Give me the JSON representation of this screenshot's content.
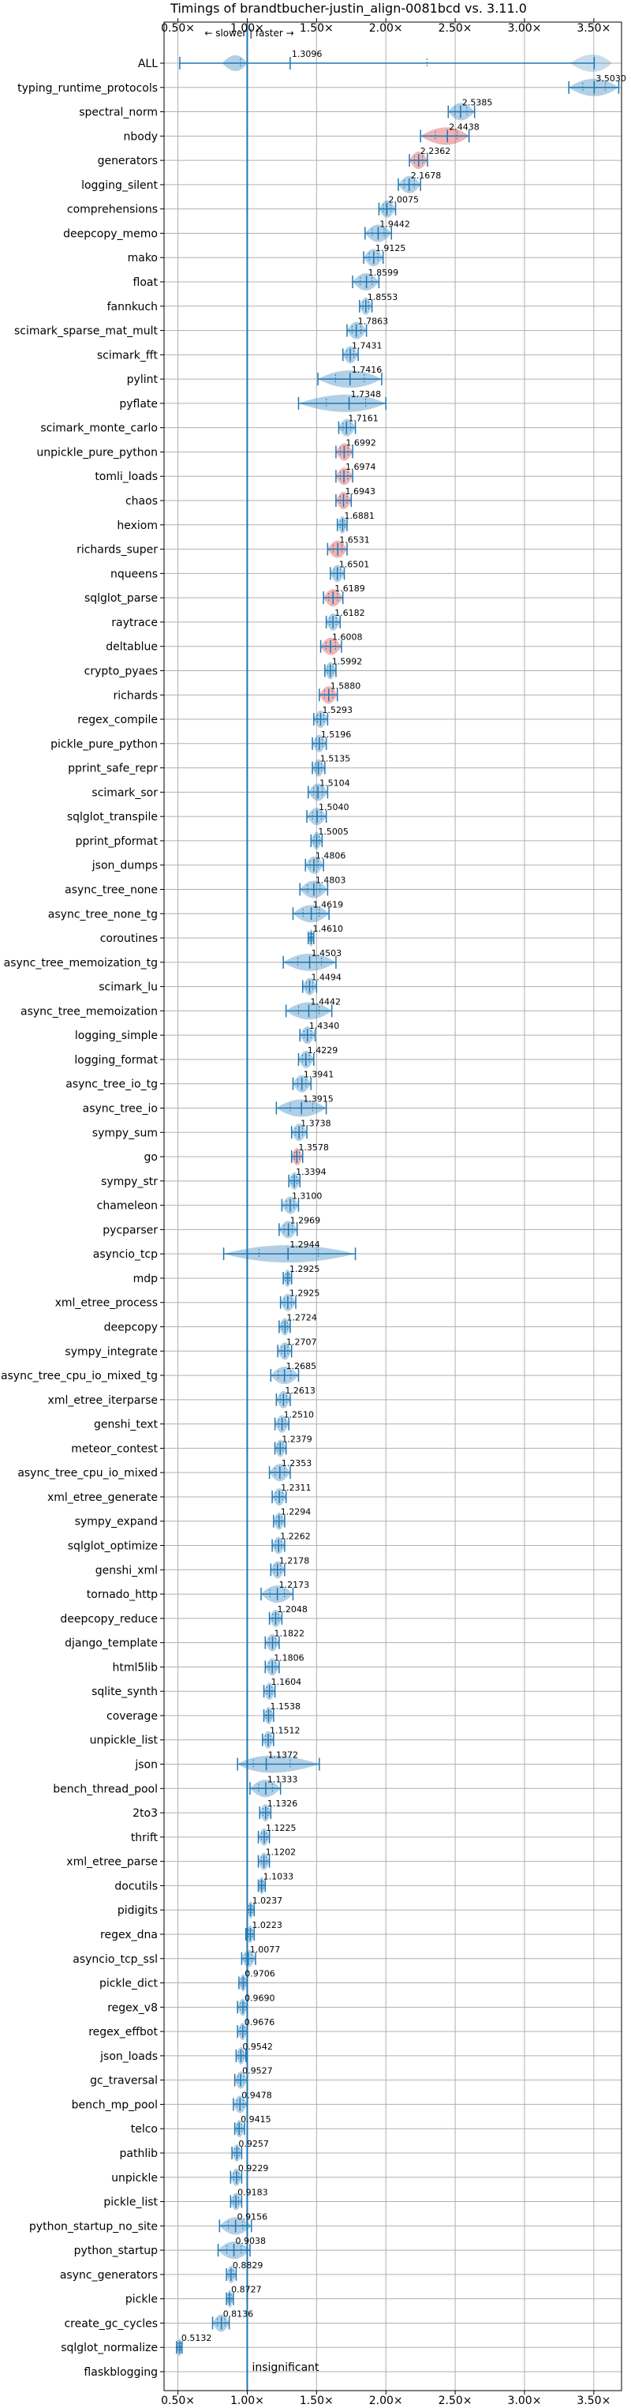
{
  "chart_data": {
    "type": "violin",
    "title": "Timings of brandtbucher-justin_align-0081bcd vs. 3.11.0",
    "xlim": [
      0.4,
      3.7
    ],
    "xticks": [
      0.5,
      1.0,
      1.5,
      2.0,
      2.5,
      3.0,
      3.5
    ],
    "xtick_labels": [
      "0.50×",
      "1.00×",
      "1.50×",
      "2.00×",
      "2.50×",
      "3.00×",
      "3.50×"
    ],
    "grid": true,
    "reference_x": 1.0,
    "direction_hint": "← slower | faster →",
    "colors": {
      "faster": "#1f77b4",
      "slower": "#d62728",
      "line": "#1f77b4"
    },
    "categories": [
      {
        "name": "ALL",
        "value": 1.3096,
        "lo": 0.5132,
        "hi": 3.503,
        "wide": true
      },
      {
        "name": "typing_runtime_protocols",
        "value": 3.503,
        "lo": 3.32,
        "hi": 3.68
      },
      {
        "name": "spectral_norm",
        "value": 2.5385,
        "lo": 2.45,
        "hi": 2.64
      },
      {
        "name": "nbody",
        "value": 2.4438,
        "lo": 2.25,
        "hi": 2.6
      },
      {
        "name": "generators",
        "value": 2.2362,
        "lo": 2.17,
        "hi": 2.3
      },
      {
        "name": "logging_silent",
        "value": 2.1678,
        "lo": 2.09,
        "hi": 2.25
      },
      {
        "name": "comprehensions",
        "value": 2.0075,
        "lo": 1.95,
        "hi": 2.07
      },
      {
        "name": "deepcopy_memo",
        "value": 1.9442,
        "lo": 1.85,
        "hi": 2.04
      },
      {
        "name": "mako",
        "value": 1.9125,
        "lo": 1.84,
        "hi": 1.98
      },
      {
        "name": "float",
        "value": 1.8599,
        "lo": 1.76,
        "hi": 1.95
      },
      {
        "name": "fannkuch",
        "value": 1.8553,
        "lo": 1.81,
        "hi": 1.9
      },
      {
        "name": "scimark_sparse_mat_mult",
        "value": 1.7863,
        "lo": 1.72,
        "hi": 1.86
      },
      {
        "name": "scimark_fft",
        "value": 1.7431,
        "lo": 1.69,
        "hi": 1.8
      },
      {
        "name": "pylint",
        "value": 1.7416,
        "lo": 1.51,
        "hi": 1.97
      },
      {
        "name": "pyflate",
        "value": 1.7348,
        "lo": 1.37,
        "hi": 2.0
      },
      {
        "name": "scimark_monte_carlo",
        "value": 1.7161,
        "lo": 1.66,
        "hi": 1.78
      },
      {
        "name": "unpickle_pure_python",
        "value": 1.6992,
        "lo": 1.64,
        "hi": 1.76
      },
      {
        "name": "tomli_loads",
        "value": 1.6974,
        "lo": 1.64,
        "hi": 1.76
      },
      {
        "name": "chaos",
        "value": 1.6943,
        "lo": 1.64,
        "hi": 1.75
      },
      {
        "name": "hexiom",
        "value": 1.6881,
        "lo": 1.65,
        "hi": 1.72
      },
      {
        "name": "richards_super",
        "value": 1.6531,
        "lo": 1.58,
        "hi": 1.72
      },
      {
        "name": "nqueens",
        "value": 1.6501,
        "lo": 1.6,
        "hi": 1.7
      },
      {
        "name": "sqlglot_parse",
        "value": 1.6189,
        "lo": 1.55,
        "hi": 1.69
      },
      {
        "name": "raytrace",
        "value": 1.6182,
        "lo": 1.57,
        "hi": 1.67
      },
      {
        "name": "deltablue",
        "value": 1.6008,
        "lo": 1.53,
        "hi": 1.68
      },
      {
        "name": "crypto_pyaes",
        "value": 1.5992,
        "lo": 1.56,
        "hi": 1.64
      },
      {
        "name": "richards",
        "value": 1.588,
        "lo": 1.52,
        "hi": 1.65
      },
      {
        "name": "regex_compile",
        "value": 1.5293,
        "lo": 1.48,
        "hi": 1.58
      },
      {
        "name": "pickle_pure_python",
        "value": 1.5196,
        "lo": 1.47,
        "hi": 1.57
      },
      {
        "name": "pprint_safe_repr",
        "value": 1.5135,
        "lo": 1.47,
        "hi": 1.56
      },
      {
        "name": "scimark_sor",
        "value": 1.5104,
        "lo": 1.44,
        "hi": 1.58
      },
      {
        "name": "sqlglot_transpile",
        "value": 1.504,
        "lo": 1.43,
        "hi": 1.57
      },
      {
        "name": "pprint_pformat",
        "value": 1.5005,
        "lo": 1.46,
        "hi": 1.54
      },
      {
        "name": "json_dumps",
        "value": 1.4806,
        "lo": 1.42,
        "hi": 1.55
      },
      {
        "name": "async_tree_none",
        "value": 1.4803,
        "lo": 1.38,
        "hi": 1.58
      },
      {
        "name": "async_tree_none_tg",
        "value": 1.4619,
        "lo": 1.33,
        "hi": 1.59
      },
      {
        "name": "coroutines",
        "value": 1.461,
        "lo": 1.44,
        "hi": 1.48
      },
      {
        "name": "async_tree_memoization_tg",
        "value": 1.4503,
        "lo": 1.26,
        "hi": 1.64
      },
      {
        "name": "scimark_lu",
        "value": 1.4494,
        "lo": 1.4,
        "hi": 1.5
      },
      {
        "name": "async_tree_memoization",
        "value": 1.4442,
        "lo": 1.28,
        "hi": 1.61
      },
      {
        "name": "logging_simple",
        "value": 1.434,
        "lo": 1.38,
        "hi": 1.49
      },
      {
        "name": "logging_format",
        "value": 1.4229,
        "lo": 1.37,
        "hi": 1.48
      },
      {
        "name": "async_tree_io_tg",
        "value": 1.3941,
        "lo": 1.33,
        "hi": 1.46
      },
      {
        "name": "async_tree_io",
        "value": 1.3915,
        "lo": 1.21,
        "hi": 1.57
      },
      {
        "name": "sympy_sum",
        "value": 1.3738,
        "lo": 1.32,
        "hi": 1.43
      },
      {
        "name": "go",
        "value": 1.3578,
        "lo": 1.32,
        "hi": 1.4
      },
      {
        "name": "sympy_str",
        "value": 1.3394,
        "lo": 1.3,
        "hi": 1.38
      },
      {
        "name": "chameleon",
        "value": 1.31,
        "lo": 1.25,
        "hi": 1.37
      },
      {
        "name": "pycparser",
        "value": 1.2969,
        "lo": 1.23,
        "hi": 1.36
      },
      {
        "name": "asyncio_tcp",
        "value": 1.2944,
        "lo": 0.83,
        "hi": 1.78
      },
      {
        "name": "mdp",
        "value": 1.2925,
        "lo": 1.26,
        "hi": 1.32
      },
      {
        "name": "xml_etree_process",
        "value": 1.2925,
        "lo": 1.24,
        "hi": 1.35
      },
      {
        "name": "deepcopy",
        "value": 1.2724,
        "lo": 1.23,
        "hi": 1.31
      },
      {
        "name": "sympy_integrate",
        "value": 1.2707,
        "lo": 1.22,
        "hi": 1.32
      },
      {
        "name": "async_tree_cpu_io_mixed_tg",
        "value": 1.2685,
        "lo": 1.17,
        "hi": 1.37
      },
      {
        "name": "xml_etree_iterparse",
        "value": 1.2613,
        "lo": 1.21,
        "hi": 1.31
      },
      {
        "name": "genshi_text",
        "value": 1.251,
        "lo": 1.2,
        "hi": 1.3
      },
      {
        "name": "meteor_contest",
        "value": 1.2379,
        "lo": 1.2,
        "hi": 1.28
      },
      {
        "name": "async_tree_cpu_io_mixed",
        "value": 1.2353,
        "lo": 1.16,
        "hi": 1.31
      },
      {
        "name": "xml_etree_generate",
        "value": 1.2311,
        "lo": 1.18,
        "hi": 1.28
      },
      {
        "name": "sympy_expand",
        "value": 1.2294,
        "lo": 1.19,
        "hi": 1.27
      },
      {
        "name": "sqlglot_optimize",
        "value": 1.2262,
        "lo": 1.18,
        "hi": 1.27
      },
      {
        "name": "genshi_xml",
        "value": 1.2178,
        "lo": 1.17,
        "hi": 1.27
      },
      {
        "name": "tornado_http",
        "value": 1.2173,
        "lo": 1.1,
        "hi": 1.33
      },
      {
        "name": "deepcopy_reduce",
        "value": 1.2048,
        "lo": 1.16,
        "hi": 1.25
      },
      {
        "name": "django_template",
        "value": 1.1822,
        "lo": 1.13,
        "hi": 1.23
      },
      {
        "name": "html5lib",
        "value": 1.1806,
        "lo": 1.13,
        "hi": 1.23
      },
      {
        "name": "sqlite_synth",
        "value": 1.1604,
        "lo": 1.12,
        "hi": 1.2
      },
      {
        "name": "coverage",
        "value": 1.1538,
        "lo": 1.12,
        "hi": 1.19
      },
      {
        "name": "unpickle_list",
        "value": 1.1512,
        "lo": 1.11,
        "hi": 1.19
      },
      {
        "name": "json",
        "value": 1.1372,
        "lo": 0.93,
        "hi": 1.52
      },
      {
        "name": "bench_thread_pool",
        "value": 1.1333,
        "lo": 1.02,
        "hi": 1.24
      },
      {
        "name": "2to3",
        "value": 1.1326,
        "lo": 1.09,
        "hi": 1.17
      },
      {
        "name": "thrift",
        "value": 1.1225,
        "lo": 1.08,
        "hi": 1.16
      },
      {
        "name": "xml_etree_parse",
        "value": 1.1202,
        "lo": 1.08,
        "hi": 1.16
      },
      {
        "name": "docutils",
        "value": 1.1033,
        "lo": 1.08,
        "hi": 1.13
      },
      {
        "name": "pidigits",
        "value": 1.0237,
        "lo": 1.0,
        "hi": 1.05
      },
      {
        "name": "regex_dna",
        "value": 1.0223,
        "lo": 0.99,
        "hi": 1.05
      },
      {
        "name": "asyncio_tcp_ssl",
        "value": 1.0077,
        "lo": 0.96,
        "hi": 1.06
      },
      {
        "name": "pickle_dict",
        "value": 0.9706,
        "lo": 0.94,
        "hi": 1.0
      },
      {
        "name": "regex_v8",
        "value": 0.969,
        "lo": 0.93,
        "hi": 1.0
      },
      {
        "name": "regex_effbot",
        "value": 0.9676,
        "lo": 0.93,
        "hi": 1.0
      },
      {
        "name": "json_loads",
        "value": 0.9542,
        "lo": 0.92,
        "hi": 0.99
      },
      {
        "name": "gc_traversal",
        "value": 0.9527,
        "lo": 0.91,
        "hi": 1.0
      },
      {
        "name": "bench_mp_pool",
        "value": 0.9478,
        "lo": 0.9,
        "hi": 1.0
      },
      {
        "name": "telco",
        "value": 0.9415,
        "lo": 0.91,
        "hi": 0.98
      },
      {
        "name": "pathlib",
        "value": 0.9257,
        "lo": 0.89,
        "hi": 0.96
      },
      {
        "name": "unpickle",
        "value": 0.9229,
        "lo": 0.88,
        "hi": 0.96
      },
      {
        "name": "pickle_list",
        "value": 0.9183,
        "lo": 0.88,
        "hi": 0.96
      },
      {
        "name": "python_startup_no_site",
        "value": 0.9156,
        "lo": 0.8,
        "hi": 1.03
      },
      {
        "name": "python_startup",
        "value": 0.9038,
        "lo": 0.79,
        "hi": 1.02
      },
      {
        "name": "async_generators",
        "value": 0.8829,
        "lo": 0.85,
        "hi": 0.92
      },
      {
        "name": "pickle",
        "value": 0.8727,
        "lo": 0.85,
        "hi": 0.9
      },
      {
        "name": "create_gc_cycles",
        "value": 0.8136,
        "lo": 0.75,
        "hi": 0.87
      },
      {
        "name": "sqlglot_normalize",
        "value": 0.5132,
        "lo": 0.49,
        "hi": 0.53
      },
      {
        "name": "flaskblogging",
        "value": null,
        "lo": null,
        "hi": null,
        "note": "insignificant"
      }
    ],
    "slower_highlight": [
      "nbody",
      "generators",
      "unpickle_pure_python",
      "tomli_loads",
      "chaos",
      "richards_super",
      "sqlglot_parse",
      "deltablue",
      "richards",
      "go"
    ]
  }
}
